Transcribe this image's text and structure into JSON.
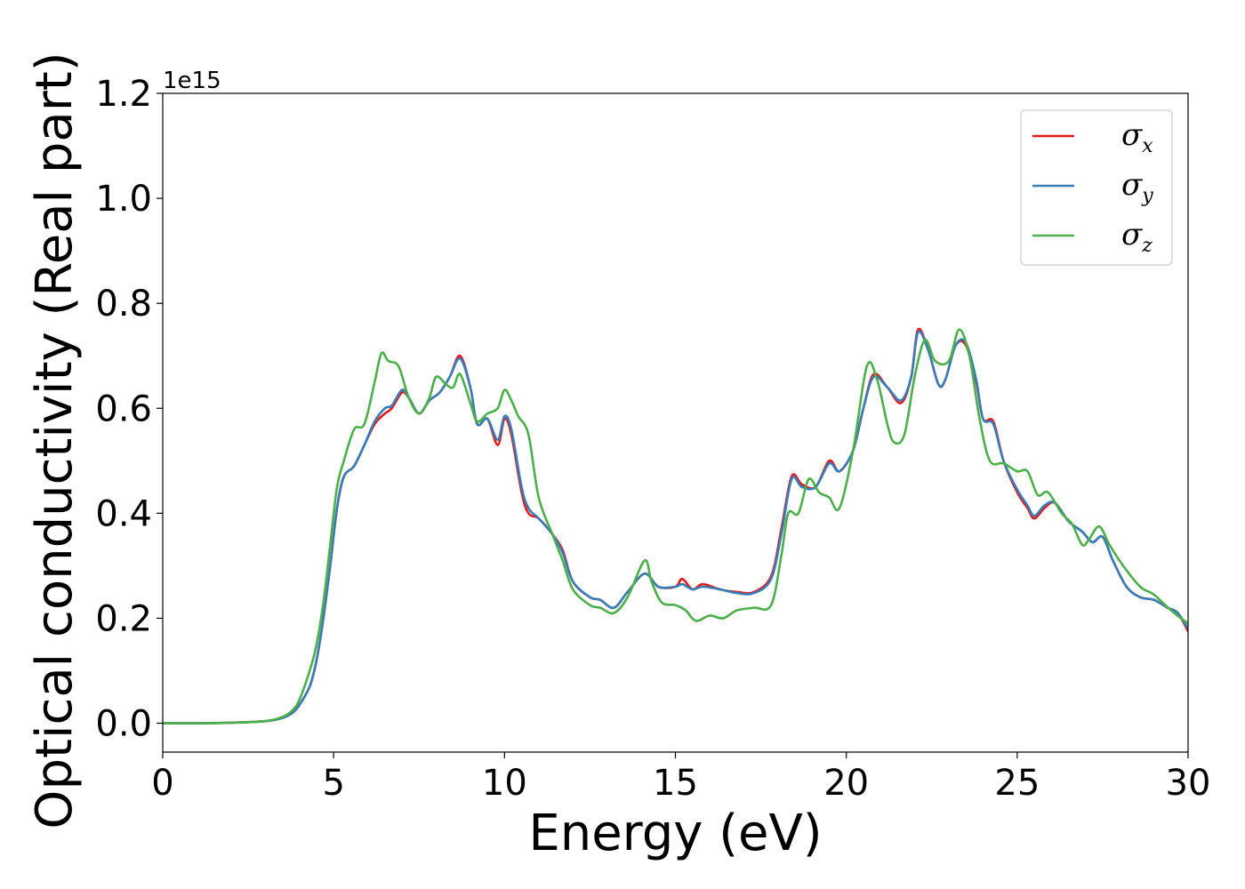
{
  "chart_data": {
    "type": "line",
    "xlabel": "Energy (eV)",
    "ylabel": "Optical conductivity (Real part)",
    "y_offset_text": "1e15",
    "y_scale_factor": 1000000000000000.0,
    "xlim": [
      0,
      30
    ],
    "ylim": [
      -0.055,
      1.2
    ],
    "xticks": [
      0,
      5,
      10,
      15,
      20,
      25,
      30
    ],
    "xtick_labels": [
      "0",
      "5",
      "10",
      "15",
      "20",
      "25",
      "30"
    ],
    "yticks": [
      0.0,
      0.2,
      0.4,
      0.6,
      0.8,
      1.0,
      1.2
    ],
    "ytick_labels": [
      "0.0",
      "0.2",
      "0.4",
      "0.6",
      "0.8",
      "1.0",
      "1.2"
    ],
    "grid": false,
    "legend_position": "top-right",
    "series": [
      {
        "name": "x",
        "label_symbol": "σ",
        "color": "#e41a1c",
        "points": [
          [
            0,
            0
          ],
          [
            1,
            0
          ],
          [
            2,
            0.001
          ],
          [
            3,
            0.004
          ],
          [
            3.5,
            0.01
          ],
          [
            3.8,
            0.02
          ],
          [
            4,
            0.035
          ],
          [
            4.3,
            0.07
          ],
          [
            4.5,
            0.12
          ],
          [
            4.7,
            0.2
          ],
          [
            4.9,
            0.3
          ],
          [
            5.1,
            0.41
          ],
          [
            5.3,
            0.47
          ],
          [
            5.6,
            0.49
          ],
          [
            5.9,
            0.53
          ],
          [
            6.2,
            0.57
          ],
          [
            6.5,
            0.59
          ],
          [
            6.7,
            0.6
          ],
          [
            7,
            0.63
          ],
          [
            7.2,
            0.62
          ],
          [
            7.5,
            0.59
          ],
          [
            7.8,
            0.615
          ],
          [
            8.1,
            0.63
          ],
          [
            8.4,
            0.66
          ],
          [
            8.7,
            0.7
          ],
          [
            9.0,
            0.64
          ],
          [
            9.2,
            0.57
          ],
          [
            9.5,
            0.58
          ],
          [
            9.8,
            0.53
          ],
          [
            10.0,
            0.58
          ],
          [
            10.2,
            0.55
          ],
          [
            10.5,
            0.44
          ],
          [
            10.7,
            0.4
          ],
          [
            11.0,
            0.39
          ],
          [
            11.4,
            0.36
          ],
          [
            11.7,
            0.33
          ],
          [
            12.0,
            0.27
          ],
          [
            12.5,
            0.24
          ],
          [
            12.8,
            0.235
          ],
          [
            13.2,
            0.22
          ],
          [
            13.6,
            0.25
          ],
          [
            14.1,
            0.285
          ],
          [
            14.5,
            0.26
          ],
          [
            15.0,
            0.26
          ],
          [
            15.2,
            0.275
          ],
          [
            15.5,
            0.255
          ],
          [
            15.8,
            0.265
          ],
          [
            16.3,
            0.255
          ],
          [
            16.8,
            0.25
          ],
          [
            17.3,
            0.25
          ],
          [
            17.8,
            0.28
          ],
          [
            18.1,
            0.37
          ],
          [
            18.4,
            0.47
          ],
          [
            18.7,
            0.455
          ],
          [
            19.1,
            0.45
          ],
          [
            19.5,
            0.5
          ],
          [
            19.8,
            0.48
          ],
          [
            20.2,
            0.52
          ],
          [
            20.5,
            0.6
          ],
          [
            20.8,
            0.665
          ],
          [
            21.2,
            0.64
          ],
          [
            21.6,
            0.61
          ],
          [
            21.9,
            0.66
          ],
          [
            22.1,
            0.75
          ],
          [
            22.4,
            0.71
          ],
          [
            22.7,
            0.645
          ],
          [
            22.9,
            0.655
          ],
          [
            23.2,
            0.72
          ],
          [
            23.5,
            0.72
          ],
          [
            23.8,
            0.65
          ],
          [
            24.0,
            0.58
          ],
          [
            24.3,
            0.575
          ],
          [
            24.6,
            0.5
          ],
          [
            25.0,
            0.44
          ],
          [
            25.3,
            0.41
          ],
          [
            25.5,
            0.39
          ],
          [
            25.8,
            0.41
          ],
          [
            26.1,
            0.42
          ],
          [
            26.5,
            0.385
          ],
          [
            26.9,
            0.365
          ],
          [
            27.2,
            0.345
          ],
          [
            27.5,
            0.355
          ],
          [
            27.8,
            0.31
          ],
          [
            28.2,
            0.26
          ],
          [
            28.6,
            0.24
          ],
          [
            29.0,
            0.235
          ],
          [
            29.4,
            0.22
          ],
          [
            29.7,
            0.21
          ],
          [
            30,
            0.175
          ]
        ]
      },
      {
        "name": "y",
        "label_symbol": "σ",
        "color": "#377eb8",
        "points": [
          [
            0,
            0
          ],
          [
            1,
            0
          ],
          [
            2,
            0.001
          ],
          [
            3,
            0.004
          ],
          [
            3.5,
            0.01
          ],
          [
            3.8,
            0.02
          ],
          [
            4,
            0.035
          ],
          [
            4.3,
            0.07
          ],
          [
            4.5,
            0.12
          ],
          [
            4.7,
            0.2
          ],
          [
            4.9,
            0.3
          ],
          [
            5.1,
            0.41
          ],
          [
            5.3,
            0.47
          ],
          [
            5.6,
            0.49
          ],
          [
            5.9,
            0.53
          ],
          [
            6.2,
            0.575
          ],
          [
            6.5,
            0.6
          ],
          [
            6.7,
            0.605
          ],
          [
            7,
            0.635
          ],
          [
            7.2,
            0.62
          ],
          [
            7.5,
            0.59
          ],
          [
            7.8,
            0.615
          ],
          [
            8.1,
            0.63
          ],
          [
            8.4,
            0.66
          ],
          [
            8.7,
            0.695
          ],
          [
            9.0,
            0.64
          ],
          [
            9.2,
            0.57
          ],
          [
            9.5,
            0.58
          ],
          [
            9.8,
            0.54
          ],
          [
            10.0,
            0.585
          ],
          [
            10.2,
            0.56
          ],
          [
            10.5,
            0.45
          ],
          [
            10.7,
            0.41
          ],
          [
            11.0,
            0.39
          ],
          [
            11.4,
            0.36
          ],
          [
            11.7,
            0.325
          ],
          [
            12.0,
            0.27
          ],
          [
            12.5,
            0.24
          ],
          [
            12.8,
            0.235
          ],
          [
            13.2,
            0.22
          ],
          [
            13.6,
            0.25
          ],
          [
            14.1,
            0.285
          ],
          [
            14.5,
            0.26
          ],
          [
            15.0,
            0.26
          ],
          [
            15.2,
            0.265
          ],
          [
            15.5,
            0.255
          ],
          [
            15.8,
            0.26
          ],
          [
            16.3,
            0.255
          ],
          [
            16.8,
            0.248
          ],
          [
            17.3,
            0.248
          ],
          [
            17.8,
            0.275
          ],
          [
            18.1,
            0.36
          ],
          [
            18.4,
            0.465
          ],
          [
            18.7,
            0.45
          ],
          [
            19.1,
            0.45
          ],
          [
            19.5,
            0.495
          ],
          [
            19.8,
            0.48
          ],
          [
            20.2,
            0.52
          ],
          [
            20.5,
            0.6
          ],
          [
            20.8,
            0.66
          ],
          [
            21.2,
            0.64
          ],
          [
            21.6,
            0.615
          ],
          [
            21.9,
            0.66
          ],
          [
            22.1,
            0.745
          ],
          [
            22.4,
            0.71
          ],
          [
            22.7,
            0.645
          ],
          [
            22.9,
            0.655
          ],
          [
            23.2,
            0.72
          ],
          [
            23.5,
            0.725
          ],
          [
            23.8,
            0.655
          ],
          [
            24.0,
            0.58
          ],
          [
            24.3,
            0.57
          ],
          [
            24.6,
            0.5
          ],
          [
            25.0,
            0.445
          ],
          [
            25.3,
            0.415
          ],
          [
            25.5,
            0.395
          ],
          [
            25.8,
            0.415
          ],
          [
            26.1,
            0.42
          ],
          [
            26.5,
            0.385
          ],
          [
            26.9,
            0.365
          ],
          [
            27.2,
            0.345
          ],
          [
            27.5,
            0.355
          ],
          [
            27.8,
            0.31
          ],
          [
            28.2,
            0.26
          ],
          [
            28.6,
            0.24
          ],
          [
            29.0,
            0.235
          ],
          [
            29.4,
            0.22
          ],
          [
            29.7,
            0.21
          ],
          [
            30,
            0.18
          ]
        ]
      },
      {
        "name": "z",
        "label_symbol": "σ",
        "color": "#4daf4a",
        "points": [
          [
            0,
            0
          ],
          [
            1,
            0
          ],
          [
            2,
            0.001
          ],
          [
            3,
            0.004
          ],
          [
            3.5,
            0.012
          ],
          [
            3.8,
            0.025
          ],
          [
            4,
            0.045
          ],
          [
            4.3,
            0.1
          ],
          [
            4.5,
            0.15
          ],
          [
            4.7,
            0.23
          ],
          [
            4.9,
            0.34
          ],
          [
            5.1,
            0.45
          ],
          [
            5.3,
            0.5
          ],
          [
            5.6,
            0.56
          ],
          [
            5.9,
            0.57
          ],
          [
            6.2,
            0.65
          ],
          [
            6.4,
            0.705
          ],
          [
            6.6,
            0.69
          ],
          [
            6.9,
            0.68
          ],
          [
            7.2,
            0.62
          ],
          [
            7.5,
            0.59
          ],
          [
            7.8,
            0.62
          ],
          [
            8.0,
            0.66
          ],
          [
            8.3,
            0.645
          ],
          [
            8.5,
            0.64
          ],
          [
            8.7,
            0.665
          ],
          [
            9.0,
            0.61
          ],
          [
            9.2,
            0.575
          ],
          [
            9.5,
            0.59
          ],
          [
            9.8,
            0.6
          ],
          [
            10.0,
            0.635
          ],
          [
            10.2,
            0.615
          ],
          [
            10.4,
            0.585
          ],
          [
            10.7,
            0.55
          ],
          [
            11.0,
            0.43
          ],
          [
            11.4,
            0.36
          ],
          [
            11.7,
            0.31
          ],
          [
            12.0,
            0.255
          ],
          [
            12.5,
            0.225
          ],
          [
            12.8,
            0.22
          ],
          [
            13.2,
            0.21
          ],
          [
            13.6,
            0.24
          ],
          [
            14.1,
            0.31
          ],
          [
            14.3,
            0.27
          ],
          [
            14.6,
            0.23
          ],
          [
            15.0,
            0.225
          ],
          [
            15.3,
            0.215
          ],
          [
            15.6,
            0.195
          ],
          [
            16.0,
            0.205
          ],
          [
            16.4,
            0.2
          ],
          [
            16.8,
            0.215
          ],
          [
            17.3,
            0.22
          ],
          [
            17.8,
            0.225
          ],
          [
            18.1,
            0.32
          ],
          [
            18.3,
            0.4
          ],
          [
            18.6,
            0.4
          ],
          [
            18.9,
            0.465
          ],
          [
            19.2,
            0.44
          ],
          [
            19.5,
            0.43
          ],
          [
            19.8,
            0.41
          ],
          [
            20.2,
            0.52
          ],
          [
            20.6,
            0.68
          ],
          [
            20.9,
            0.655
          ],
          [
            21.2,
            0.57
          ],
          [
            21.4,
            0.535
          ],
          [
            21.7,
            0.55
          ],
          [
            22.0,
            0.66
          ],
          [
            22.3,
            0.73
          ],
          [
            22.6,
            0.69
          ],
          [
            23.0,
            0.69
          ],
          [
            23.3,
            0.75
          ],
          [
            23.6,
            0.7
          ],
          [
            23.9,
            0.58
          ],
          [
            24.2,
            0.5
          ],
          [
            24.6,
            0.495
          ],
          [
            25.0,
            0.48
          ],
          [
            25.3,
            0.48
          ],
          [
            25.6,
            0.435
          ],
          [
            25.9,
            0.44
          ],
          [
            26.3,
            0.4
          ],
          [
            26.6,
            0.38
          ],
          [
            26.9,
            0.34
          ],
          [
            27.1,
            0.35
          ],
          [
            27.4,
            0.375
          ],
          [
            27.7,
            0.34
          ],
          [
            28.1,
            0.3
          ],
          [
            28.6,
            0.26
          ],
          [
            29.0,
            0.245
          ],
          [
            29.5,
            0.215
          ],
          [
            30,
            0.19
          ]
        ]
      }
    ]
  }
}
